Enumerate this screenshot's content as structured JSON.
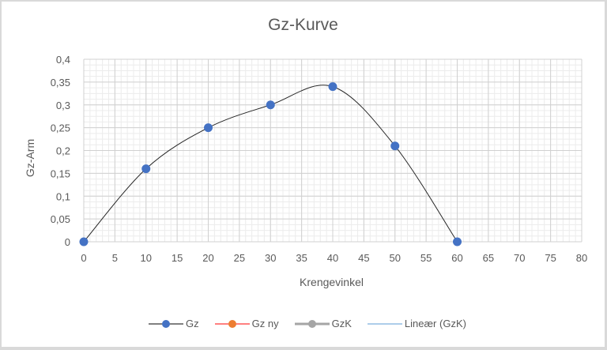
{
  "chart_data": {
    "type": "line",
    "title": "Gz-Kurve",
    "xlabel": "Krengevinkel",
    "ylabel": "Gz-Arm",
    "xlim": [
      0,
      80
    ],
    "ylim": [
      0,
      0.4
    ],
    "x_ticks": [
      "0",
      "5",
      "10",
      "15",
      "20",
      "25",
      "30",
      "35",
      "40",
      "45",
      "50",
      "55",
      "60",
      "65",
      "70",
      "75",
      "80"
    ],
    "y_ticks": [
      "0",
      "0,05",
      "0,1",
      "0,15",
      "0,2",
      "0,25",
      "0,3",
      "0,35",
      "0,4"
    ],
    "grid": true,
    "legend_position": "bottom",
    "series": [
      {
        "name": "Gz",
        "x": [
          0,
          10,
          20,
          30,
          40,
          50,
          60
        ],
        "values": [
          0,
          0.16,
          0.25,
          0.3,
          0.34,
          0.21,
          0
        ],
        "color": "#4472c4",
        "line_color": "#000000",
        "smooth": true
      },
      {
        "name": "Gz ny",
        "x": [],
        "values": [],
        "color": "#ed7d31",
        "line_color": "#ff0000"
      },
      {
        "name": "GzK",
        "x": [],
        "values": [],
        "color": "#a5a5a5",
        "line_color": "#a5a5a5"
      },
      {
        "name": "Lineær (GzK)",
        "x": [],
        "values": [],
        "color": "#5b9bd5",
        "line_color": "#5b9bd5"
      }
    ]
  },
  "legend": [
    {
      "label": "Gz"
    },
    {
      "label": "Gz ny"
    },
    {
      "label": "GzK"
    },
    {
      "label": "Lineær (GzK)"
    }
  ]
}
